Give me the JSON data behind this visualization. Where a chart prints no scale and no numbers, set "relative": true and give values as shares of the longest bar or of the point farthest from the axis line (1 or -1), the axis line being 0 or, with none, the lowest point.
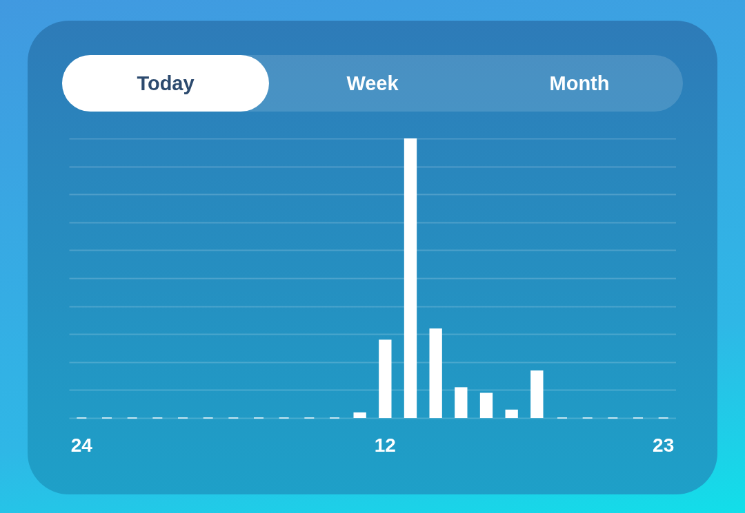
{
  "chart_data": {
    "type": "bar",
    "relative": true,
    "color": "#ffffff",
    "grid": "y",
    "annotations": [
      "Today",
      "Week",
      "Month"
    ],
    "categories": [
      "24",
      null,
      null,
      null,
      null,
      null,
      null,
      null,
      null,
      null,
      null,
      null,
      "12",
      null,
      null,
      null,
      null,
      null,
      null,
      null,
      null,
      null,
      null,
      "23"
    ],
    "values": [
      0,
      0,
      0,
      0,
      0,
      0,
      0,
      0,
      0,
      0,
      0,
      0.02,
      0.28,
      1,
      0.32,
      0.11,
      0.09,
      0.03,
      0.17,
      0,
      0,
      0,
      0,
      0
    ]
  }
}
